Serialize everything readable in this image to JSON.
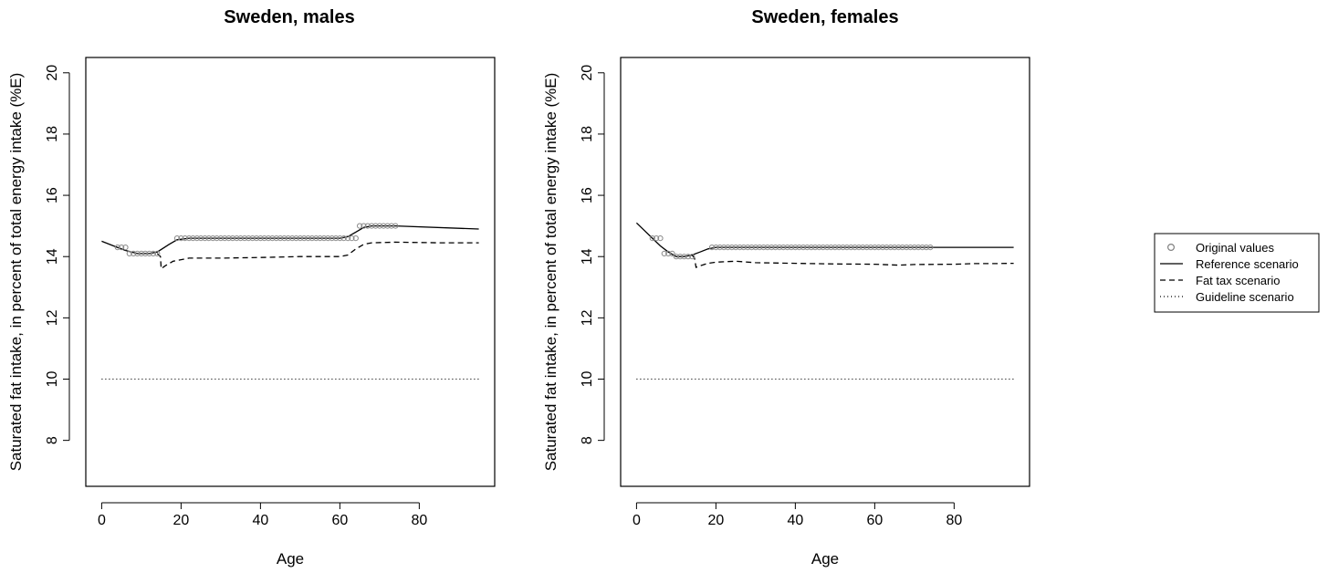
{
  "chart_data": [
    {
      "type": "line",
      "title": "Sweden, males",
      "xlabel": "Age",
      "ylabel": "Saturated fat intake, in percent of total energy intake (%E)",
      "xlim": [
        -4,
        99
      ],
      "ylim": [
        6.5,
        20.5
      ],
      "xticks": [
        "0",
        "20",
        "40",
        "60",
        "80"
      ],
      "yticks": [
        "8",
        "10",
        "12",
        "14",
        "16",
        "18",
        "20"
      ],
      "original_values": {
        "x": [
          4,
          5,
          6,
          7,
          8,
          9,
          10,
          11,
          12,
          13,
          14,
          19,
          20,
          21,
          22,
          23,
          24,
          25,
          26,
          27,
          28,
          29,
          30,
          31,
          32,
          33,
          34,
          35,
          36,
          37,
          38,
          39,
          40,
          41,
          42,
          43,
          44,
          45,
          46,
          47,
          48,
          49,
          50,
          51,
          52,
          53,
          54,
          55,
          56,
          57,
          58,
          59,
          60,
          61,
          62,
          63,
          64,
          65,
          66,
          67,
          68,
          69,
          70,
          71,
          72,
          73,
          74
        ],
        "y": [
          14.3,
          14.3,
          14.3,
          14.1,
          14.1,
          14.1,
          14.1,
          14.1,
          14.1,
          14.1,
          14.1,
          14.6,
          14.6,
          14.6,
          14.6,
          14.6,
          14.6,
          14.6,
          14.6,
          14.6,
          14.6,
          14.6,
          14.6,
          14.6,
          14.6,
          14.6,
          14.6,
          14.6,
          14.6,
          14.6,
          14.6,
          14.6,
          14.6,
          14.6,
          14.6,
          14.6,
          14.6,
          14.6,
          14.6,
          14.6,
          14.6,
          14.6,
          14.6,
          14.6,
          14.6,
          14.6,
          14.6,
          14.6,
          14.6,
          14.6,
          14.6,
          14.6,
          14.6,
          14.6,
          14.6,
          14.6,
          14.6,
          15.0,
          15.0,
          15.0,
          15.0,
          15.0,
          15.0,
          15.0,
          15.0,
          15.0,
          15.0
        ]
      },
      "series": [
        {
          "name": "Reference scenario",
          "style": "solid",
          "x": [
            0,
            3,
            6,
            9,
            12,
            14,
            17,
            19,
            22,
            40,
            60,
            62,
            64,
            66,
            68,
            74,
            95
          ],
          "y": [
            14.5,
            14.35,
            14.2,
            14.1,
            14.1,
            14.15,
            14.4,
            14.55,
            14.6,
            14.6,
            14.6,
            14.65,
            14.8,
            14.95,
            15.0,
            15.0,
            14.9
          ]
        },
        {
          "name": "Fat tax scenario",
          "style": "dashed",
          "x": [
            14,
            14.8,
            15,
            16,
            18,
            20,
            22,
            30,
            40,
            50,
            60,
            62,
            64,
            66,
            68,
            74,
            85,
            95
          ],
          "y": [
            14.1,
            14.0,
            13.6,
            13.7,
            13.85,
            13.9,
            13.95,
            13.95,
            13.97,
            14.0,
            14.0,
            14.05,
            14.25,
            14.4,
            14.45,
            14.47,
            14.45,
            14.45
          ]
        },
        {
          "name": "Guideline scenario",
          "style": "dotted",
          "x": [
            0,
            95
          ],
          "y": [
            10,
            10
          ]
        }
      ]
    },
    {
      "type": "line",
      "title": "Sweden, females",
      "xlabel": "Age",
      "ylabel": "Saturated fat intake, in percent of total energy intake (%E)",
      "xlim": [
        -4,
        99
      ],
      "ylim": [
        6.5,
        20.5
      ],
      "xticks": [
        "0",
        "20",
        "40",
        "60",
        "80"
      ],
      "yticks": [
        "8",
        "10",
        "12",
        "14",
        "16",
        "18",
        "20"
      ],
      "original_values": {
        "x": [
          4,
          5,
          6,
          7,
          8,
          9,
          10,
          11,
          12,
          13,
          14,
          19,
          20,
          21,
          22,
          23,
          24,
          25,
          26,
          27,
          28,
          29,
          30,
          31,
          32,
          33,
          34,
          35,
          36,
          37,
          38,
          39,
          40,
          41,
          42,
          43,
          44,
          45,
          46,
          47,
          48,
          49,
          50,
          51,
          52,
          53,
          54,
          55,
          56,
          57,
          58,
          59,
          60,
          61,
          62,
          63,
          64,
          65,
          66,
          67,
          68,
          69,
          70,
          71,
          72,
          73,
          74
        ],
        "y": [
          14.6,
          14.6,
          14.6,
          14.1,
          14.1,
          14.1,
          14.0,
          14.0,
          14.0,
          14.0,
          14.0,
          14.3,
          14.3,
          14.3,
          14.3,
          14.3,
          14.3,
          14.3,
          14.3,
          14.3,
          14.3,
          14.3,
          14.3,
          14.3,
          14.3,
          14.3,
          14.3,
          14.3,
          14.3,
          14.3,
          14.3,
          14.3,
          14.3,
          14.3,
          14.3,
          14.3,
          14.3,
          14.3,
          14.3,
          14.3,
          14.3,
          14.3,
          14.3,
          14.3,
          14.3,
          14.3,
          14.3,
          14.3,
          14.3,
          14.3,
          14.3,
          14.3,
          14.3,
          14.3,
          14.3,
          14.3,
          14.3,
          14.3,
          14.3,
          14.3,
          14.3,
          14.3,
          14.3,
          14.3,
          14.3,
          14.3,
          14.3
        ]
      },
      "series": [
        {
          "name": "Reference scenario",
          "style": "solid",
          "x": [
            0,
            2,
            4,
            6,
            8,
            10,
            12,
            14,
            16,
            18,
            20,
            30,
            60,
            74,
            95
          ],
          "y": [
            15.1,
            14.85,
            14.6,
            14.35,
            14.15,
            14.0,
            14.0,
            14.05,
            14.15,
            14.25,
            14.3,
            14.3,
            14.3,
            14.3,
            14.3
          ]
        },
        {
          "name": "Fat tax scenario",
          "style": "dashed",
          "x": [
            14,
            14.6,
            15,
            16,
            18,
            20,
            25,
            30,
            40,
            50,
            60,
            66,
            70,
            80,
            85,
            90,
            95
          ],
          "y": [
            14.05,
            13.95,
            13.65,
            13.7,
            13.78,
            13.82,
            13.85,
            13.8,
            13.78,
            13.76,
            13.75,
            13.72,
            13.74,
            13.75,
            13.77,
            13.77,
            13.78
          ]
        },
        {
          "name": "Guideline scenario",
          "style": "dotted",
          "x": [
            0,
            95
          ],
          "y": [
            10,
            10
          ]
        }
      ]
    }
  ],
  "legend": {
    "items": [
      {
        "label": "Original values",
        "symbol": "circle"
      },
      {
        "label": "Reference scenario",
        "symbol": "solid"
      },
      {
        "label": "Fat tax scenario",
        "symbol": "dashed"
      },
      {
        "label": "Guideline scenario",
        "symbol": "dotted"
      }
    ]
  }
}
